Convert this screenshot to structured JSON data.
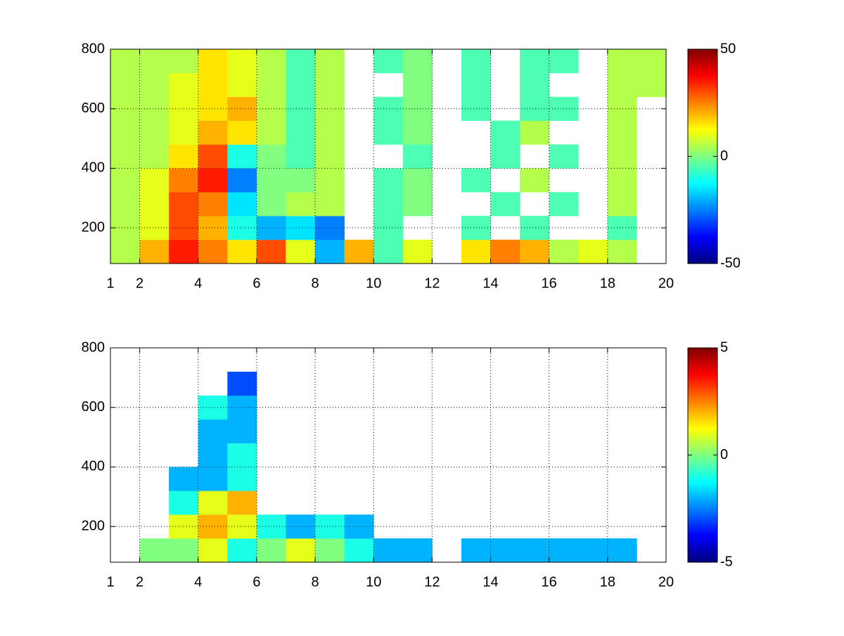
{
  "chart_data": [
    {
      "type": "heatmap",
      "colormap": "jet",
      "grid": true,
      "x_bins": [
        1,
        2,
        3,
        4,
        5,
        6,
        7,
        8,
        9,
        10,
        11,
        12,
        13,
        14,
        15,
        16,
        17,
        18,
        19,
        20
      ],
      "y_bins": [
        80,
        160,
        240,
        320,
        400,
        480,
        560,
        640,
        720,
        800
      ],
      "values": [
        [
          5,
          20,
          35,
          25,
          15,
          30,
          10,
          -20,
          20,
          -5,
          10,
          null,
          15,
          25,
          20,
          5,
          10,
          5,
          null
        ],
        [
          5,
          10,
          30,
          20,
          -10,
          -20,
          -15,
          -25,
          null,
          -5,
          null,
          null,
          -5,
          null,
          -5,
          null,
          null,
          -5,
          null
        ],
        [
          5,
          10,
          30,
          25,
          -15,
          0,
          5,
          5,
          null,
          -5,
          0,
          null,
          null,
          -5,
          null,
          -5,
          null,
          5,
          null
        ],
        [
          5,
          10,
          25,
          35,
          -25,
          0,
          0,
          5,
          null,
          -5,
          0,
          null,
          -5,
          null,
          5,
          null,
          null,
          5,
          null
        ],
        [
          5,
          5,
          15,
          30,
          -10,
          0,
          -5,
          5,
          null,
          null,
          -5,
          null,
          null,
          -5,
          null,
          -5,
          null,
          5,
          null
        ],
        [
          5,
          5,
          10,
          20,
          15,
          5,
          -5,
          5,
          null,
          -5,
          0,
          null,
          null,
          -5,
          5,
          null,
          null,
          5,
          null
        ],
        [
          5,
          5,
          10,
          15,
          20,
          5,
          -5,
          5,
          null,
          -5,
          0,
          null,
          -5,
          null,
          -5,
          -5,
          null,
          5,
          null
        ],
        [
          5,
          5,
          10,
          15,
          10,
          5,
          -5,
          5,
          null,
          null,
          0,
          null,
          -5,
          null,
          -5,
          null,
          null,
          5,
          5
        ],
        [
          5,
          5,
          5,
          15,
          10,
          5,
          -5,
          5,
          null,
          -5,
          0,
          null,
          -5,
          null,
          -5,
          -5,
          null,
          5,
          5
        ]
      ],
      "xlim": [
        1,
        20
      ],
      "xticks": [
        1,
        2,
        4,
        6,
        8,
        10,
        12,
        14,
        16,
        18,
        20
      ],
      "ylim": [
        80,
        800
      ],
      "yticks": [
        200,
        400,
        600,
        800
      ],
      "clim": [
        -50,
        50
      ],
      "cticks": [
        -50,
        0,
        50
      ]
    },
    {
      "type": "heatmap",
      "colormap": "jet",
      "grid": true,
      "x_bins": [
        1,
        2,
        3,
        4,
        5,
        6,
        7,
        8,
        9,
        10,
        11,
        12,
        13,
        14,
        15,
        16,
        17,
        18,
        19,
        20
      ],
      "y_bins": [
        80,
        160,
        240,
        320,
        400,
        480,
        560,
        640,
        720,
        800
      ],
      "values": [
        [
          null,
          0,
          0,
          1,
          -1,
          0,
          1,
          0,
          -1,
          -2,
          -2,
          null,
          -2,
          -2,
          -2,
          -2,
          -2,
          -2,
          null
        ],
        [
          null,
          null,
          1,
          2,
          1,
          -1,
          -2,
          -1,
          -2,
          null,
          null,
          null,
          null,
          null,
          null,
          null,
          null,
          null,
          null
        ],
        [
          null,
          null,
          -1,
          1,
          2,
          null,
          null,
          null,
          null,
          null,
          null,
          null,
          null,
          null,
          null,
          null,
          null,
          null,
          null
        ],
        [
          null,
          null,
          -2,
          -2,
          -1,
          null,
          null,
          null,
          null,
          null,
          null,
          null,
          null,
          null,
          null,
          null,
          null,
          null,
          null
        ],
        [
          null,
          null,
          null,
          -2,
          -1,
          null,
          null,
          null,
          null,
          null,
          null,
          null,
          null,
          null,
          null,
          null,
          null,
          null,
          null
        ],
        [
          null,
          null,
          null,
          -2,
          -2,
          null,
          null,
          null,
          null,
          null,
          null,
          null,
          null,
          null,
          null,
          null,
          null,
          null,
          null
        ],
        [
          null,
          null,
          null,
          -1,
          -2,
          null,
          null,
          null,
          null,
          null,
          null,
          null,
          null,
          null,
          null,
          null,
          null,
          null,
          null
        ],
        [
          null,
          null,
          null,
          null,
          -3,
          null,
          null,
          null,
          null,
          null,
          null,
          null,
          null,
          null,
          null,
          null,
          null,
          null,
          null
        ],
        [
          null,
          null,
          null,
          null,
          null,
          null,
          null,
          null,
          null,
          null,
          null,
          null,
          null,
          null,
          null,
          null,
          null,
          null,
          null
        ]
      ],
      "xlim": [
        1,
        20
      ],
      "xticks": [
        1,
        2,
        4,
        6,
        8,
        10,
        12,
        14,
        16,
        18,
        20
      ],
      "ylim": [
        80,
        800
      ],
      "yticks": [
        200,
        400,
        600,
        800
      ],
      "clim": [
        -5,
        5
      ],
      "cticks": [
        -5,
        0,
        5
      ]
    }
  ]
}
